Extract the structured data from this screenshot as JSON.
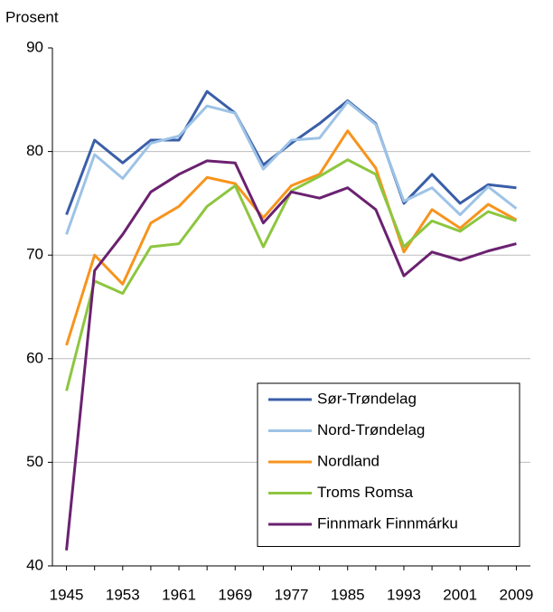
{
  "chart_data": {
    "type": "line",
    "y_label": "Prosent",
    "x": [
      1945,
      1949,
      1953,
      1957,
      1961,
      1965,
      1969,
      1973,
      1977,
      1981,
      1985,
      1989,
      1993,
      1997,
      2001,
      2005,
      2009
    ],
    "xlim": [
      1943,
      2011
    ],
    "xticks": [
      1945,
      1953,
      1961,
      1969,
      1977,
      1985,
      1993,
      2001,
      2009
    ],
    "ylim": [
      40,
      90
    ],
    "yticks": [
      40,
      50,
      60,
      70,
      80,
      90
    ],
    "grid": true,
    "legend": "lower right",
    "series": [
      {
        "name": "Sør-Trøndelag",
        "color": "#3a5ea8",
        "values": [
          73.9,
          81.1,
          78.9,
          81.1,
          81.1,
          85.8,
          83.7,
          78.7,
          80.8,
          82.7,
          84.9,
          82.7,
          75.0,
          77.8,
          75.0,
          76.8,
          76.5
        ]
      },
      {
        "name": "Nord-Trøndelag",
        "color": "#9dc3e6",
        "values": [
          72.0,
          79.7,
          77.4,
          80.8,
          81.5,
          84.4,
          83.7,
          78.3,
          81.1,
          81.3,
          84.8,
          82.6,
          75.2,
          76.5,
          73.9,
          76.6,
          74.5
        ]
      },
      {
        "name": "Nordland",
        "color": "#f7941d",
        "values": [
          61.3,
          70.0,
          67.2,
          73.1,
          74.7,
          77.5,
          76.9,
          73.6,
          76.7,
          77.8,
          82.0,
          78.4,
          70.3,
          74.4,
          72.6,
          74.9,
          73.4
        ]
      },
      {
        "name": "Troms Romsa",
        "color": "#8dc63f",
        "values": [
          56.9,
          67.5,
          66.3,
          70.8,
          71.1,
          74.7,
          76.7,
          70.8,
          76.2,
          77.6,
          79.2,
          77.8,
          70.8,
          73.3,
          72.3,
          74.2,
          73.3
        ]
      },
      {
        "name": "Finnmark Finnmárku",
        "color": "#6b2170",
        "values": [
          41.5,
          68.5,
          72.0,
          76.1,
          77.8,
          79.1,
          78.9,
          73.1,
          76.1,
          75.5,
          76.5,
          74.4,
          68.0,
          70.3,
          69.5,
          70.4,
          71.1
        ]
      }
    ]
  }
}
